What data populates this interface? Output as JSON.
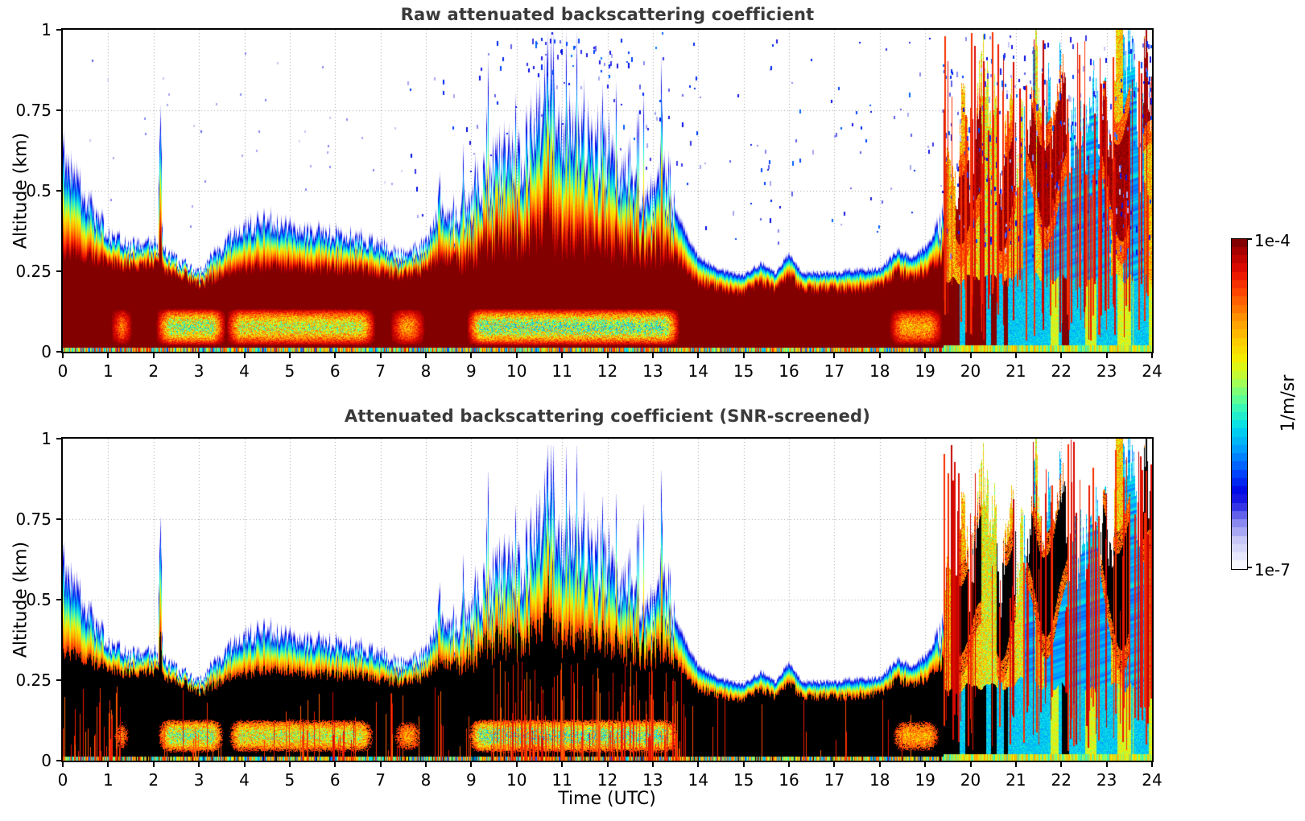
{
  "figure": {
    "background": "#ffffff",
    "title_color": "#3a3a3a",
    "axis_color": "#000000",
    "grid_color": "#a8a8a8"
  },
  "axes": {
    "x_label": "Time (UTC)",
    "x_ticks": [
      0,
      1,
      2,
      3,
      4,
      5,
      6,
      7,
      8,
      9,
      10,
      11,
      12,
      13,
      14,
      15,
      16,
      17,
      18,
      19,
      20,
      21,
      22,
      23,
      24
    ],
    "y_label": "Altitude (km)",
    "y_ticks": [
      {
        "v": 0,
        "label": "0"
      },
      {
        "v": 0.25,
        "label": "0.25"
      },
      {
        "v": 0.5,
        "label": "0.5"
      },
      {
        "v": 0.75,
        "label": "0.75"
      },
      {
        "v": 1,
        "label": "1"
      }
    ]
  },
  "colorbar": {
    "top_label": "1e-4",
    "bottom_label": "1e-7",
    "units_label": "1/m/sr",
    "steps": 40
  },
  "chart_data": {
    "type": "heatmap",
    "panels": [
      {
        "title": "Raw attenuated backscattering coefficient",
        "screened": false
      },
      {
        "title": "Attenuated backscattering coefficient (SNR-screened)",
        "screened": true
      }
    ],
    "x": {
      "label": "Time (UTC)",
      "units": "hours",
      "range": [
        0,
        24
      ],
      "ticks": [
        0,
        1,
        2,
        3,
        4,
        5,
        6,
        7,
        8,
        9,
        10,
        11,
        12,
        13,
        14,
        15,
        16,
        17,
        18,
        19,
        20,
        21,
        22,
        23,
        24
      ]
    },
    "y": {
      "label": "Altitude (km)",
      "range": [
        0,
        1
      ],
      "ticks": [
        0,
        0.25,
        0.5,
        0.75,
        1
      ]
    },
    "value": {
      "label": "Attenuated backscattering coefficient",
      "units": "1/m/sr",
      "scale": "log10",
      "min": 1e-07,
      "max": 0.0001
    },
    "colormap_stops": [
      [
        0.0,
        "#ffffff"
      ],
      [
        0.045,
        "#e2e2fb"
      ],
      [
        0.09,
        "#c3c3f7"
      ],
      [
        0.135,
        "#8d8df0"
      ],
      [
        0.18,
        "#4040e8"
      ],
      [
        0.23,
        "#0000e0"
      ],
      [
        0.29,
        "#0046ff"
      ],
      [
        0.36,
        "#009dff"
      ],
      [
        0.43,
        "#00dcec"
      ],
      [
        0.5,
        "#46ffa8"
      ],
      [
        0.565,
        "#a8ff50"
      ],
      [
        0.63,
        "#f2f200"
      ],
      [
        0.7,
        "#ffc400"
      ],
      [
        0.77,
        "#ff8800"
      ],
      [
        0.84,
        "#ff4400"
      ],
      [
        0.9,
        "#e80e00"
      ],
      [
        0.95,
        "#b40000"
      ],
      [
        1.0,
        "#730000"
      ]
    ],
    "boundary_layer_top_km": {
      "t": [
        0,
        0.3,
        0.7,
        1,
        1.5,
        2,
        2.3,
        2.7,
        3,
        3.3,
        3.7,
        4,
        4.5,
        5,
        5.5,
        6,
        6.5,
        7,
        7.5,
        8,
        8.3,
        8.7,
        9,
        9.5,
        10,
        10.4,
        10.7,
        11,
        11.5,
        12,
        12.5,
        13,
        13.3,
        13.6,
        14,
        14.5,
        15,
        15.4,
        15.7,
        16,
        16.3,
        17,
        17.5,
        18,
        18.4,
        18.7,
        19,
        19.3,
        19.6,
        20,
        20.5,
        21,
        22,
        23,
        24
      ],
      "h": [
        0.64,
        0.55,
        0.44,
        0.38,
        0.33,
        0.35,
        0.3,
        0.27,
        0.24,
        0.3,
        0.36,
        0.39,
        0.42,
        0.4,
        0.38,
        0.37,
        0.36,
        0.34,
        0.3,
        0.34,
        0.44,
        0.42,
        0.5,
        0.58,
        0.63,
        0.68,
        0.9,
        0.66,
        0.68,
        0.63,
        0.58,
        0.5,
        0.55,
        0.42,
        0.3,
        0.26,
        0.24,
        0.28,
        0.25,
        0.31,
        0.25,
        0.25,
        0.26,
        0.26,
        0.32,
        0.3,
        0.33,
        0.38,
        0.5,
        0.7,
        0.95,
        1.0,
        0.95,
        0.65,
        0.52
      ]
    },
    "strong_core_top_km": {
      "t": [
        0,
        0.3,
        0.7,
        1,
        1.5,
        2,
        2.3,
        2.7,
        3,
        3.3,
        3.7,
        4,
        4.5,
        5,
        5.5,
        6,
        6.5,
        7,
        7.5,
        8,
        8.3,
        8.7,
        9,
        9.5,
        10,
        10.4,
        10.7,
        11,
        11.5,
        12,
        12.5,
        13,
        13.3,
        13.6,
        14,
        14.5,
        15,
        15.4,
        15.7,
        16,
        16.3,
        17,
        17.5,
        18,
        18.4,
        18.7,
        19,
        19.3,
        19.6,
        20,
        20.5,
        21,
        22,
        23,
        24
      ],
      "h": [
        0.3,
        0.29,
        0.28,
        0.27,
        0.26,
        0.27,
        0.25,
        0.23,
        0.2,
        0.22,
        0.24,
        0.25,
        0.26,
        0.26,
        0.25,
        0.25,
        0.25,
        0.24,
        0.23,
        0.25,
        0.28,
        0.28,
        0.3,
        0.32,
        0.33,
        0.34,
        0.36,
        0.33,
        0.33,
        0.32,
        0.31,
        0.3,
        0.3,
        0.27,
        0.21,
        0.19,
        0.18,
        0.21,
        0.19,
        0.23,
        0.19,
        0.19,
        0.19,
        0.2,
        0.24,
        0.22,
        0.24,
        0.27,
        0.32,
        0.4,
        0.45,
        0.45,
        0.4,
        0.3,
        0.25
      ]
    },
    "plumes": [
      {
        "t": 2.15,
        "top": 0.78,
        "w": 0.05
      },
      {
        "t": 8.3,
        "top": 0.55,
        "w": 0.07
      },
      {
        "t": 10.7,
        "top": 1.0,
        "w": 0.06
      },
      {
        "t": 13.2,
        "top": 0.85,
        "w": 0.05
      }
    ],
    "surface_weak_patches": [
      {
        "t0": 1.05,
        "t1": 1.55,
        "s": 0.5
      },
      {
        "t0": 2.05,
        "t1": 3.6,
        "s": 0.8
      },
      {
        "t0": 3.6,
        "t1": 6.9,
        "s": 0.7
      },
      {
        "t0": 7.2,
        "t1": 8.0,
        "s": 0.45
      },
      {
        "t0": 8.9,
        "t1": 13.6,
        "s": 0.85
      },
      {
        "t0": 18.2,
        "t1": 19.4,
        "s": 0.5
      }
    ],
    "convective_period": {
      "start": 8.8,
      "end": 13.4,
      "note": "spiky plumes up to 0.6-1.0 km"
    },
    "quiescent_period": {
      "start": 13.8,
      "end": 19.2,
      "note": "shallow flat layer ~0.25 km with small bumps at 15.4 and 16.0"
    },
    "precip_event": {
      "start": 19.4,
      "end": 24,
      "cloud_top_range": [
        0.5,
        1.0
      ],
      "note": "broken low clouds (strong red/dark cores, black when screened) with cyan-blue rain shafts reaching the ground"
    },
    "notes": [
      "Raw panel shows sparse blue noise speckles above the aerosol layer, densest over and after 19:30",
      "Screened panel: strongest echoes (near 1e-4 1/m/sr) rendered black; faint noise removed",
      "Multicolored thin stripe at 0-0.01 km across all times",
      "Weak (yellow/cyan) pockets near the surface around 02:00-07:00 and 09:00-13:30"
    ]
  }
}
